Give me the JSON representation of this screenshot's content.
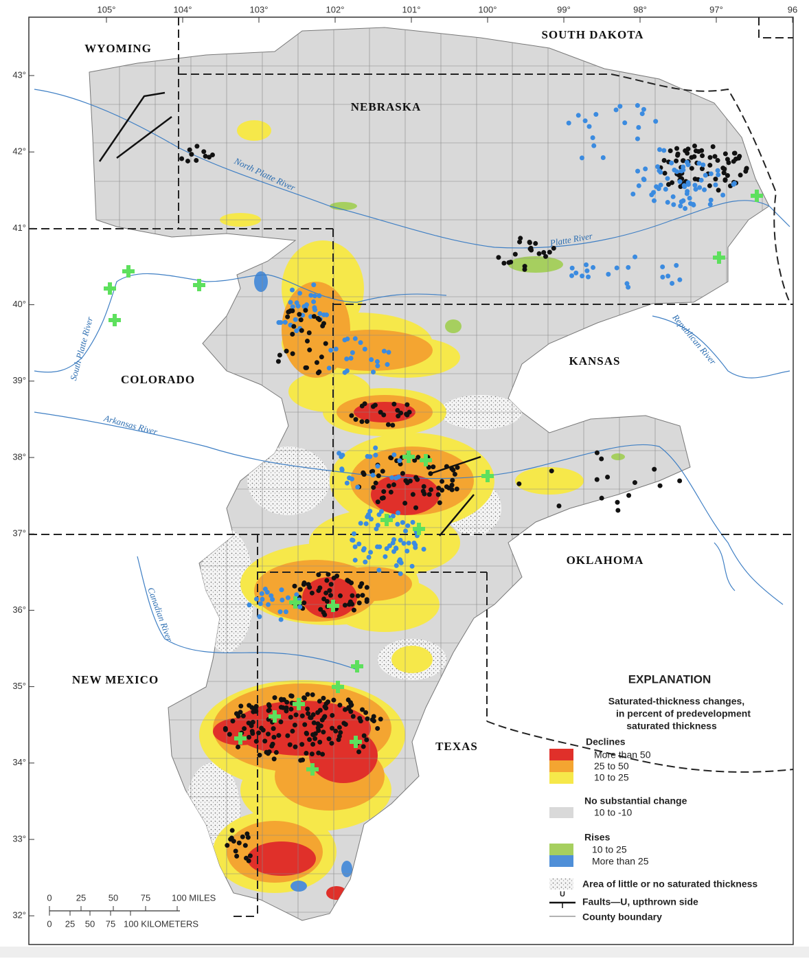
{
  "graticule": {
    "longitudes": [
      "105°",
      "104°",
      "103°",
      "102°",
      "101°",
      "100°",
      "99°",
      "98°",
      "97°",
      "96"
    ],
    "latitudes": [
      "43°",
      "42°",
      "41°",
      "40°",
      "39°",
      "38°",
      "37°",
      "36°",
      "35°",
      "34°",
      "33°",
      "32°"
    ]
  },
  "states": [
    "WYOMING",
    "SOUTH DAKOTA",
    "NEBRASKA",
    "COLORADO",
    "KANSAS",
    "OKLAHOMA",
    "NEW MEXICO",
    "TEXAS"
  ],
  "rivers": [
    "North Platte River",
    "Platte River",
    "South Platte River",
    "Republican River",
    "Arkansas River",
    "Canadian River"
  ],
  "legend": {
    "title": "EXPLANATION",
    "subtitle": [
      "Saturated-thickness changes,",
      "in percent of predevelopment",
      "saturated thickness"
    ],
    "declines": {
      "heading": "Declines",
      "items": [
        "More than 50",
        "25 to 50",
        "10 to 25"
      ]
    },
    "no_change": {
      "heading": "No substantial change",
      "items": [
        "10 to -10"
      ]
    },
    "rises": {
      "heading": "Rises",
      "items": [
        "10 to 25",
        "More than 25"
      ]
    },
    "little_saturated": "Area of little or no saturated thickness",
    "fault_symbol": "U",
    "faults": "Faults—U, upthrown side",
    "county": "County boundary"
  },
  "scale": {
    "miles": [
      "0",
      "25",
      "50",
      "75",
      "100 MILES"
    ],
    "kilometers": [
      "0",
      "25",
      "50",
      "75",
      "100 KILOMETERS"
    ]
  }
}
